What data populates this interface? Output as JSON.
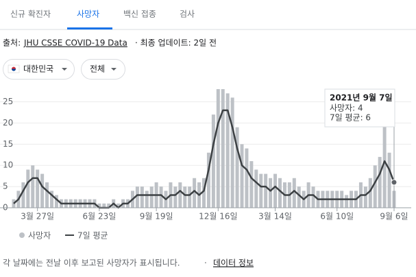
{
  "tabs": [
    "신규 확진자",
    "사망자",
    "백신 접종",
    "검사"
  ],
  "source": {
    "prefix": "출처:",
    "link": "JHU CSSE COVID-19 Data",
    "suffix": "· 최종 업데이트: 2일 전"
  },
  "filters": [
    "대한민국",
    "전체"
  ],
  "chart_data": {
    "type": "bar",
    "categories": [
      null,
      null,
      null,
      null,
      null,
      "3월 27일",
      null,
      null,
      null,
      null,
      null,
      null,
      null,
      null,
      null,
      null,
      null,
      null,
      "6월 23일",
      null,
      null,
      null,
      null,
      null,
      null,
      null,
      null,
      null,
      null,
      null,
      "9월 19일",
      null,
      null,
      null,
      null,
      null,
      null,
      null,
      null,
      null,
      null,
      null,
      null,
      "12월 16일",
      null,
      null,
      null,
      null,
      null,
      null,
      null,
      null,
      null,
      null,
      null,
      "3월 14일",
      null,
      null,
      null,
      null,
      null,
      null,
      null,
      null,
      null,
      null,
      null,
      null,
      "6월 10일",
      null,
      null,
      null,
      null,
      null,
      null,
      null,
      null,
      null,
      null,
      null,
      "9월 6일"
    ],
    "series": [
      {
        "name": "사망자",
        "type": "bar",
        "color": "#bdc1c6",
        "values": [
          2,
          4,
          6,
          9,
          10,
          9,
          8,
          6,
          4,
          3,
          2,
          2,
          2,
          2,
          2,
          2,
          2,
          2,
          1,
          1,
          1,
          2,
          1,
          2,
          2,
          4,
          5,
          5,
          4,
          5,
          6,
          5,
          4,
          6,
          5,
          6,
          5,
          5,
          7,
          6,
          7,
          13,
          22,
          28,
          28,
          27,
          26,
          19,
          15,
          14,
          11,
          9,
          8,
          8,
          7,
          8,
          7,
          6,
          6,
          7,
          5,
          4,
          6,
          5,
          4,
          4,
          4,
          4,
          4,
          4,
          3,
          4,
          4,
          6,
          5,
          7,
          10,
          12,
          20,
          13,
          4
        ]
      },
      {
        "name": "7일 평균",
        "type": "line",
        "color": "#3c4043",
        "values": [
          1,
          2,
          4,
          6,
          7,
          7,
          5,
          4,
          3,
          2,
          1,
          1,
          1,
          1,
          1,
          1,
          1,
          1,
          0,
          0,
          0,
          1,
          0,
          1,
          1,
          2,
          3,
          3,
          3,
          3,
          3,
          3,
          2,
          3,
          3,
          4,
          3,
          3,
          4,
          3,
          4,
          9,
          15,
          20,
          23,
          23,
          19,
          14,
          10,
          9,
          7,
          6,
          5,
          5,
          4,
          5,
          4,
          3,
          3,
          4,
          3,
          2,
          3,
          3,
          2,
          2,
          2,
          2,
          2,
          2,
          2,
          2,
          2,
          3,
          3,
          4,
          6,
          8,
          11,
          9,
          6
        ]
      }
    ],
    "ylim": [
      0,
      28
    ],
    "yticks": [
      0,
      5,
      10,
      15,
      20,
      25
    ],
    "grid": true,
    "tooltip": {
      "title": "2021년 9월 7일",
      "lines": [
        "사망자: 4",
        "7일 평균: 6"
      ]
    }
  },
  "footer": {
    "note": "각 날짜에는 전날 이후 보고된 사망자가 표시됩니다.",
    "link": "데이터 정보"
  }
}
